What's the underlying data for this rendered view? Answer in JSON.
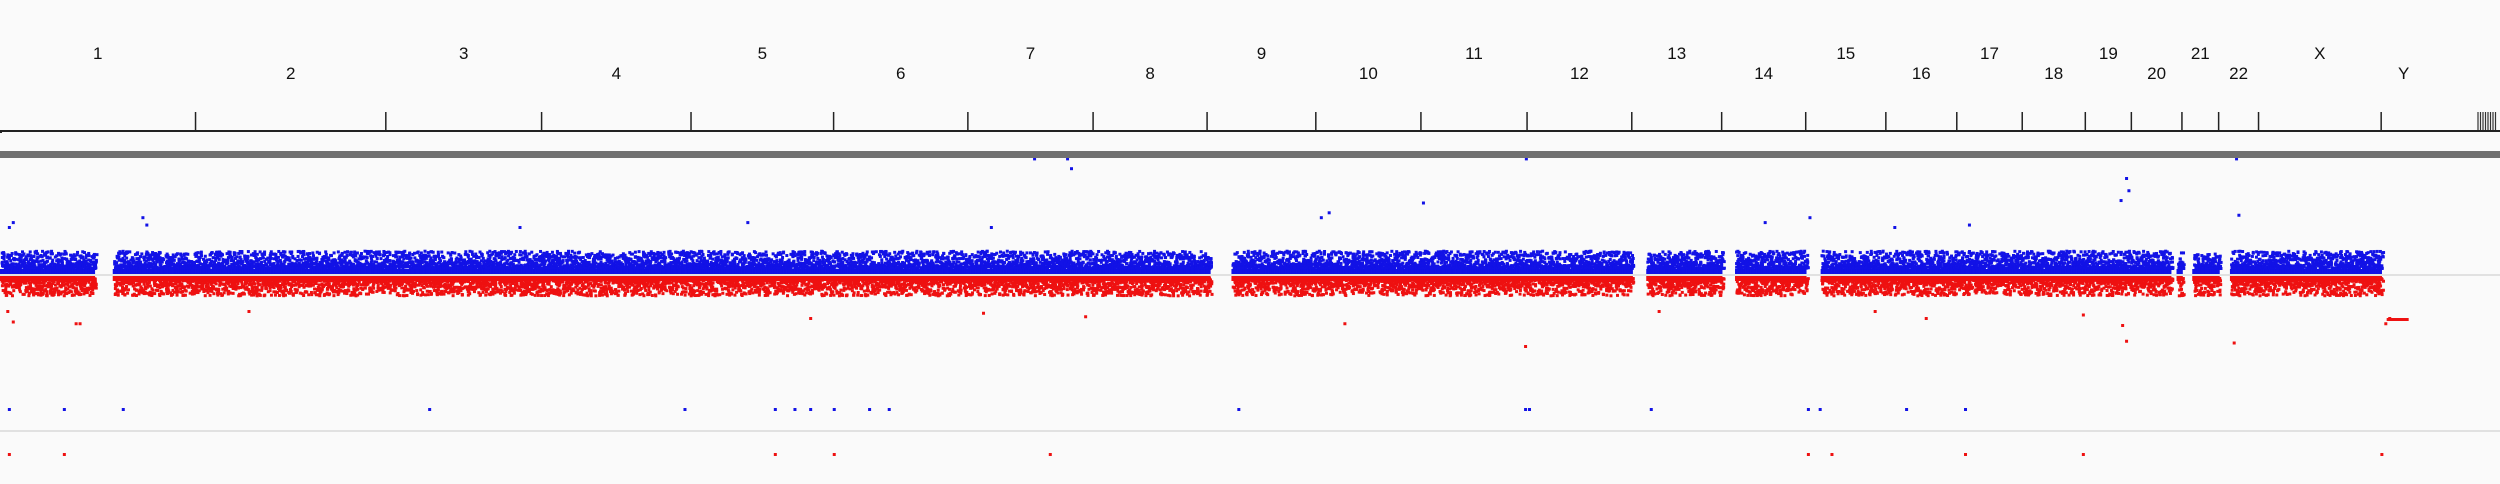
{
  "viewer": {
    "genome_extent_mb": 3095.7,
    "colors": {
      "gain": "#1212e6",
      "loss": "#ee1111",
      "track_divider": "#707070",
      "baseline": "#c8c8c8",
      "background": "#fafafa"
    }
  },
  "ruler": {
    "chromosomes": [
      {
        "name": "1",
        "start_mb": 0,
        "end_mb": 248.9
      },
      {
        "name": "2",
        "start_mb": 248.9,
        "end_mb": 491.1
      },
      {
        "name": "3",
        "start_mb": 491.1,
        "end_mb": 689.4
      },
      {
        "name": "4",
        "start_mb": 689.4,
        "end_mb": 879.6
      },
      {
        "name": "5",
        "start_mb": 879.6,
        "end_mb": 1061.1
      },
      {
        "name": "6",
        "start_mb": 1061.1,
        "end_mb": 1232.0
      },
      {
        "name": "7",
        "start_mb": 1232.0,
        "end_mb": 1391.4
      },
      {
        "name": "8",
        "start_mb": 1391.4,
        "end_mb": 1536.5
      },
      {
        "name": "9",
        "start_mb": 1536.5,
        "end_mb": 1674.9
      },
      {
        "name": "10",
        "start_mb": 1674.9,
        "end_mb": 1808.7
      },
      {
        "name": "11",
        "start_mb": 1808.7,
        "end_mb": 1943.8
      },
      {
        "name": "12",
        "start_mb": 1943.8,
        "end_mb": 2077.1
      },
      {
        "name": "13",
        "start_mb": 2077.1,
        "end_mb": 2191.5
      },
      {
        "name": "14",
        "start_mb": 2191.5,
        "end_mb": 2298.5
      },
      {
        "name": "15",
        "start_mb": 2298.5,
        "end_mb": 2400.5
      },
      {
        "name": "16",
        "start_mb": 2400.5,
        "end_mb": 2490.8
      },
      {
        "name": "17",
        "start_mb": 2490.8,
        "end_mb": 2574.1
      },
      {
        "name": "18",
        "start_mb": 2574.1,
        "end_mb": 2654.4
      },
      {
        "name": "19",
        "start_mb": 2654.4,
        "end_mb": 2713.0
      },
      {
        "name": "20",
        "start_mb": 2713.0,
        "end_mb": 2777.4
      },
      {
        "name": "21",
        "start_mb": 2777.4,
        "end_mb": 2824.1
      },
      {
        "name": "22",
        "start_mb": 2824.1,
        "end_mb": 2874.9
      },
      {
        "name": "X",
        "start_mb": 2874.9,
        "end_mb": 3031.0
      },
      {
        "name": "Y",
        "start_mb": 3031.0,
        "end_mb": 3088.2
      }
    ],
    "unplaced_contig_ticks": 8
  },
  "track": {
    "data_gaps_mb": [
      [
        120.0,
        143.0
      ],
      [
        1540.0,
        1567.0
      ],
      [
        2077.1,
        2095.0
      ],
      [
        2191.5,
        2208.0
      ],
      [
        2298.5,
        2317.0
      ],
      [
        2763.0,
        2770.0
      ],
      [
        2777.4,
        2790.0
      ],
      [
        2824.1,
        2838.0
      ],
      [
        3031.0,
        3088.2
      ]
    ],
    "gain_scatter_level": 0.45,
    "loss_scatter_level": 0.45,
    "gain_outliers": [
      {
        "pos_mb": 10,
        "level": 1.0
      },
      {
        "pos_mb": 15,
        "level": 1.1
      },
      {
        "pos_mb": 180,
        "level": 1.2
      },
      {
        "pos_mb": 185,
        "level": 1.05
      },
      {
        "pos_mb": 660,
        "level": 1.0
      },
      {
        "pos_mb": 950,
        "level": 1.1
      },
      {
        "pos_mb": 1260,
        "level": 1.0
      },
      {
        "pos_mb": 1315,
        "level": 2.4
      },
      {
        "pos_mb": 1357,
        "level": 2.4
      },
      {
        "pos_mb": 1362,
        "level": 2.2
      },
      {
        "pos_mb": 1680,
        "level": 1.2
      },
      {
        "pos_mb": 1690,
        "level": 1.3
      },
      {
        "pos_mb": 1810,
        "level": 1.5
      },
      {
        "pos_mb": 1941,
        "level": 2.4
      },
      {
        "pos_mb": 2245,
        "level": 1.1
      },
      {
        "pos_mb": 2302,
        "level": 1.2
      },
      {
        "pos_mb": 2410,
        "level": 1.0
      },
      {
        "pos_mb": 2505,
        "level": 1.05
      },
      {
        "pos_mb": 2698,
        "level": 1.55
      },
      {
        "pos_mb": 2705,
        "level": 2.0
      },
      {
        "pos_mb": 2708,
        "level": 1.75
      },
      {
        "pos_mb": 2845,
        "level": 2.4
      },
      {
        "pos_mb": 2848,
        "level": 1.25
      }
    ],
    "loss_outliers": [
      {
        "pos_mb": 8,
        "level": 1.0
      },
      {
        "pos_mb": 15,
        "level": 1.3
      },
      {
        "pos_mb": 95,
        "level": 1.35
      },
      {
        "pos_mb": 100,
        "level": 1.35
      },
      {
        "pos_mb": 315,
        "level": 1.0
      },
      {
        "pos_mb": 1030,
        "level": 1.2
      },
      {
        "pos_mb": 1250,
        "level": 1.05
      },
      {
        "pos_mb": 1380,
        "level": 1.15
      },
      {
        "pos_mb": 1710,
        "level": 1.35
      },
      {
        "pos_mb": 1940,
        "level": 2.0
      },
      {
        "pos_mb": 2110,
        "level": 1.0
      },
      {
        "pos_mb": 2385,
        "level": 1.0
      },
      {
        "pos_mb": 2450,
        "level": 1.2
      },
      {
        "pos_mb": 2650,
        "level": 1.1
      },
      {
        "pos_mb": 2700,
        "level": 1.4
      },
      {
        "pos_mb": 2705,
        "level": 1.85
      },
      {
        "pos_mb": 2842,
        "level": 1.9
      },
      {
        "pos_mb": 3035,
        "level": 1.35
      },
      {
        "pos_mb": 3040,
        "level": 1.2
      }
    ],
    "lower_blue_marks_mb": [
      10,
      80,
      155,
      545,
      870,
      985,
      1010,
      1030,
      1060,
      1105,
      1130,
      1575,
      1940,
      1945,
      2100,
      2300,
      2315,
      2425,
      2500
    ],
    "lower_red_marks_mb": [
      10,
      80,
      985,
      1060,
      1335,
      2300,
      2330,
      2500,
      2650,
      3030
    ]
  }
}
